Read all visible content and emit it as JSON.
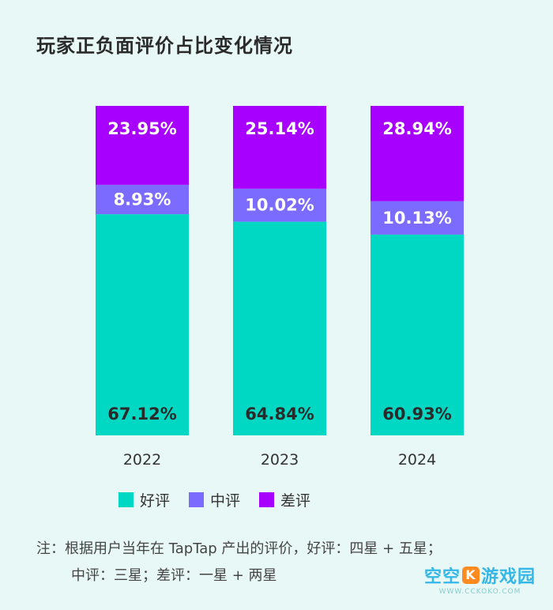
{
  "title": "玩家正负面评价占比变化情况",
  "chart_data": {
    "type": "bar",
    "stacked": true,
    "categories": [
      "2022",
      "2023",
      "2024"
    ],
    "series": [
      {
        "name": "好评",
        "color": "#00d8c4",
        "values": [
          67.12,
          64.84,
          60.93
        ],
        "labels": [
          "67.12%",
          "64.84%",
          "60.93%"
        ]
      },
      {
        "name": "中评",
        "color": "#7b6cff",
        "values": [
          8.93,
          10.02,
          10.13
        ],
        "labels": [
          "8.93%",
          "10.02%",
          "10.13%"
        ]
      },
      {
        "name": "差评",
        "color": "#a700ff",
        "values": [
          23.95,
          25.14,
          28.94
        ],
        "labels": [
          "23.95%",
          "25.14%",
          "28.94%"
        ]
      }
    ],
    "ylim": [
      0,
      100
    ],
    "grid": false,
    "legend": "bottom"
  },
  "legend": [
    {
      "label": "好评",
      "color": "#00d8c4"
    },
    {
      "label": "中评",
      "color": "#7b6cff"
    },
    {
      "label": "差评",
      "color": "#a700ff"
    }
  ],
  "note": {
    "line1": "注：根据用户当年在 TapTap 产出的评价，好评：四星 + 五星；",
    "line2": "中评：三星；差评：一星 + 两星"
  },
  "watermark": {
    "main_a": "空空",
    "main_k": "K",
    "main_b": "游戏园",
    "sub": "WWW.CCKOKO.COM"
  }
}
